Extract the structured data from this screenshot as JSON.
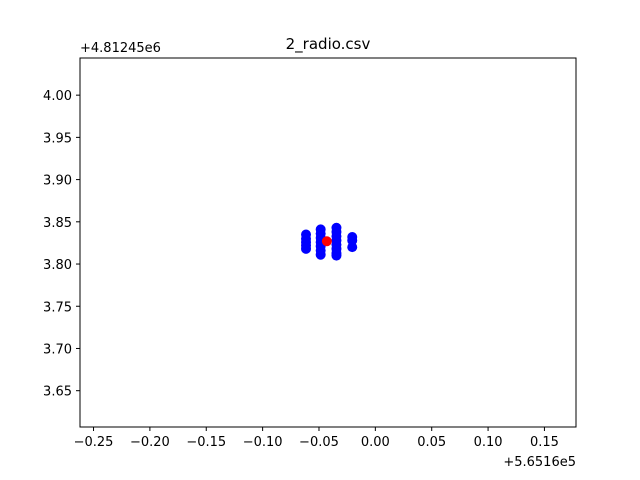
{
  "chart_data": {
    "type": "scatter",
    "title": "2_radio.csv",
    "xlabel": "",
    "ylabel": "",
    "x_offset_label": "+5.6516e5",
    "y_offset_label": "+4.81245e6",
    "xlim": [
      -0.262,
      0.178
    ],
    "ylim": [
      3.607,
      4.044
    ],
    "x_ticks": [
      -0.25,
      -0.2,
      -0.15,
      -0.1,
      -0.05,
      0.0,
      0.05,
      0.1,
      0.15
    ],
    "x_tick_labels": [
      "−0.25",
      "−0.20",
      "−0.15",
      "−0.10",
      "−0.05",
      "0.00",
      "0.05",
      "0.10",
      "0.15"
    ],
    "y_ticks": [
      3.65,
      3.7,
      3.75,
      3.8,
      3.85,
      3.9,
      3.95,
      4.0
    ],
    "y_tick_labels": [
      "3.65",
      "3.70",
      "3.75",
      "3.80",
      "3.85",
      "3.90",
      "3.95",
      "4.00"
    ],
    "grid": false,
    "series": [
      {
        "color": "#0000ff",
        "points": [
          [
            -0.0615,
            3.835
          ],
          [
            -0.0615,
            3.83
          ],
          [
            -0.0615,
            3.826
          ],
          [
            -0.0615,
            3.822
          ],
          [
            -0.0615,
            3.818
          ],
          [
            -0.0485,
            3.841
          ],
          [
            -0.0485,
            3.836
          ],
          [
            -0.0485,
            3.831
          ],
          [
            -0.0485,
            3.826
          ],
          [
            -0.0485,
            3.821
          ],
          [
            -0.0485,
            3.816
          ],
          [
            -0.0485,
            3.811
          ],
          [
            -0.0345,
            3.843
          ],
          [
            -0.0345,
            3.838
          ],
          [
            -0.0345,
            3.833
          ],
          [
            -0.0345,
            3.828
          ],
          [
            -0.0345,
            3.823
          ],
          [
            -0.0345,
            3.818
          ],
          [
            -0.0345,
            3.813
          ],
          [
            -0.0345,
            3.81
          ],
          [
            -0.0205,
            3.832
          ],
          [
            -0.0205,
            3.828
          ],
          [
            -0.0205,
            3.82
          ]
        ]
      },
      {
        "color": "#ff0000",
        "points": [
          [
            -0.043,
            3.827
          ]
        ]
      }
    ]
  }
}
